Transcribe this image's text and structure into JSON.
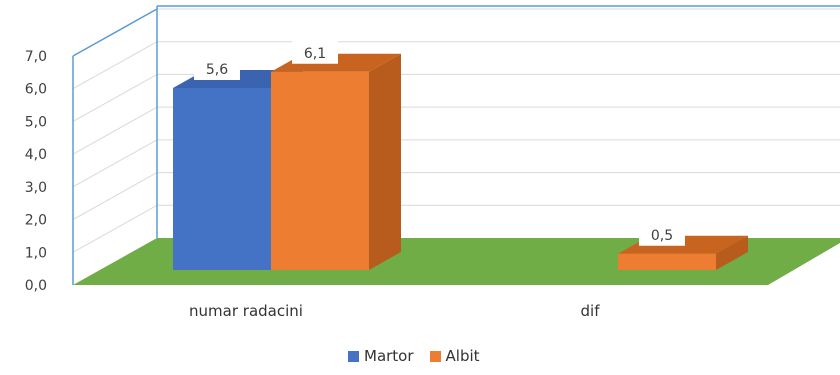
{
  "chart_data": {
    "type": "bar",
    "categories": [
      "numar radacini",
      "dif"
    ],
    "series": [
      {
        "name": "Martor",
        "values": [
          5.6,
          null
        ],
        "color": "#4472C4",
        "side_color": "#2F528F",
        "top_color": "#3A64B0"
      },
      {
        "name": "Albit",
        "values": [
          6.1,
          0.5
        ],
        "color": "#ED7D31",
        "side_color": "#B85C1E",
        "top_color": "#C8641F"
      }
    ],
    "data_labels": [
      {
        "series": "Martor",
        "category": "numar radacini",
        "text": "5,6"
      },
      {
        "series": "Albit",
        "category": "numar radacini",
        "text": "6,1"
      },
      {
        "series": "Albit",
        "category": "dif",
        "text": "0,5"
      }
    ],
    "y_ticks": [
      "0,0",
      "1,0",
      "2,0",
      "3,0",
      "4,0",
      "5,0",
      "6,0",
      "7,0"
    ],
    "ylim": [
      0,
      7
    ],
    "grid": true,
    "style": "3d-clustered-column",
    "floor_color": "#70AD47",
    "wall_edge_color": "#5B9BD5",
    "legend_position": "bottom"
  }
}
